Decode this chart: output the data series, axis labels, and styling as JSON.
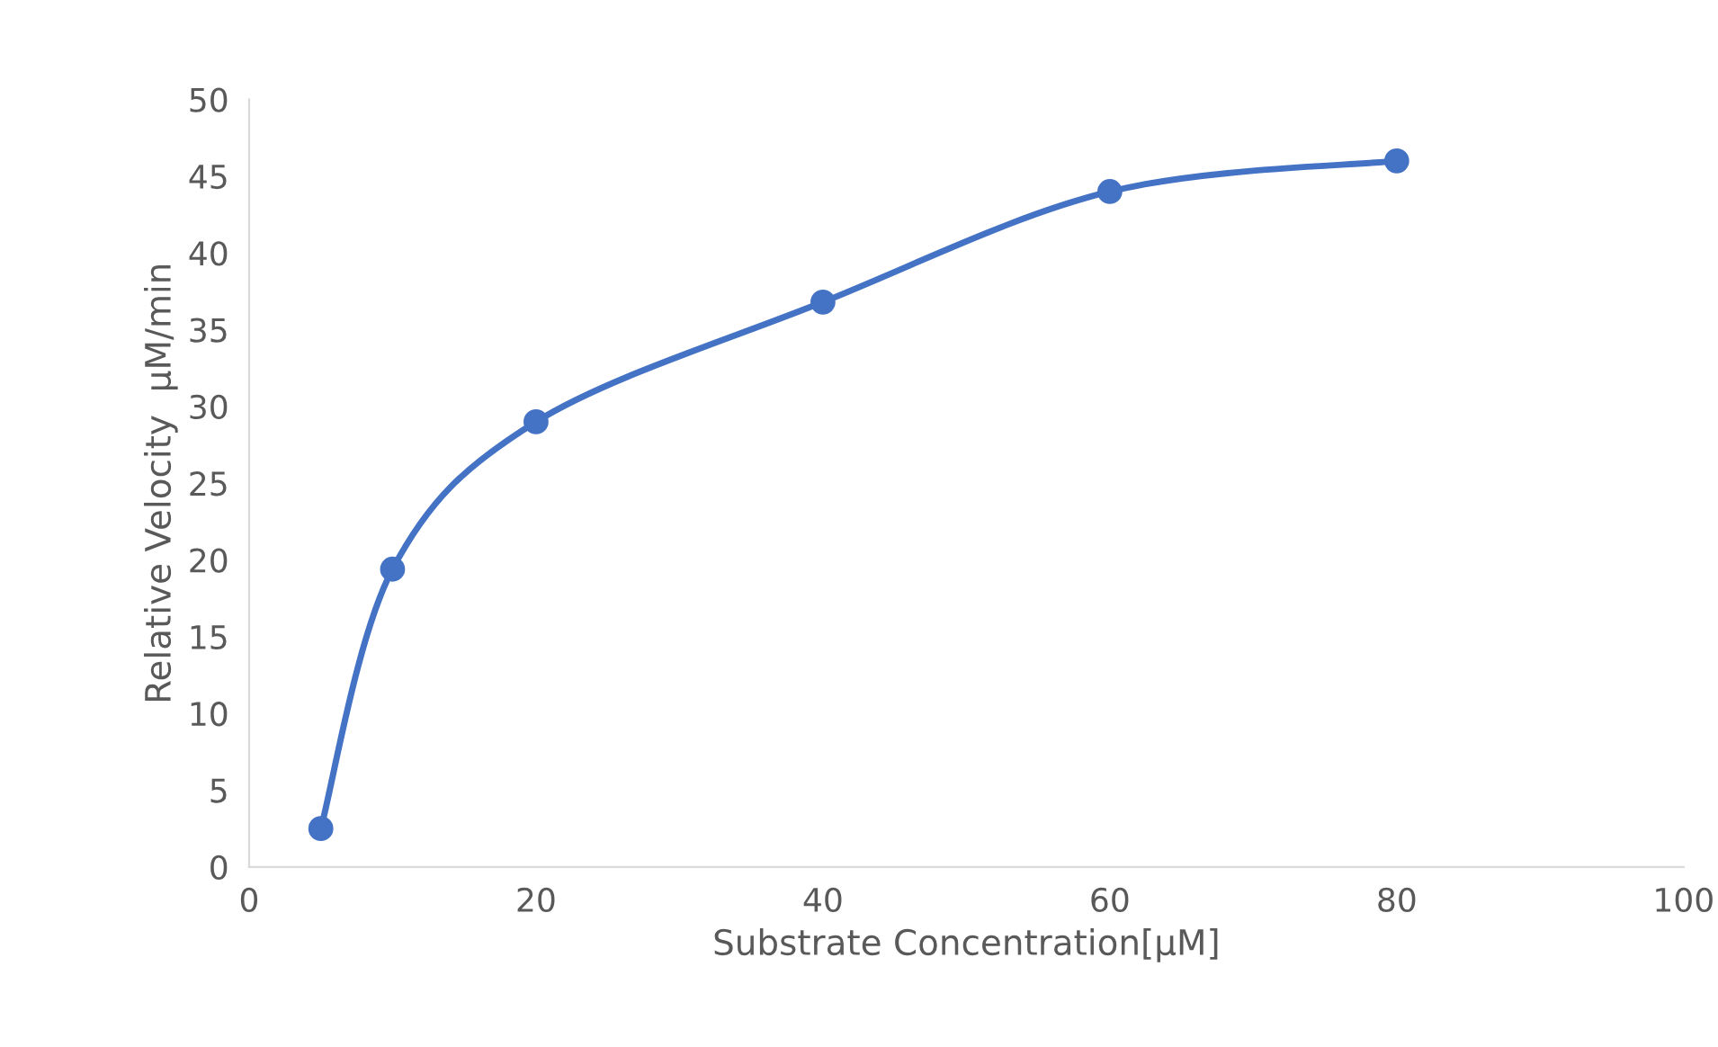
{
  "chart_data": {
    "type": "line",
    "xlabel": "Substrate Concentration[μM]",
    "ylabel": "Relative Velocity  μM/min",
    "x": [
      5,
      10,
      20,
      40,
      60,
      80
    ],
    "series": [
      {
        "color": "#4472c4",
        "values": [
          2.5,
          19.4,
          29.0,
          36.8,
          44.0,
          46.0
        ]
      }
    ],
    "xlim": [
      0,
      100
    ],
    "xticks": [
      0,
      20,
      40,
      60,
      80,
      100
    ],
    "ylim": [
      0,
      50
    ],
    "yticks": [
      0,
      5,
      10,
      15,
      20,
      25,
      30,
      35,
      40,
      45,
      50
    ],
    "grid": false,
    "marker": "circle",
    "line_style": "solid"
  }
}
